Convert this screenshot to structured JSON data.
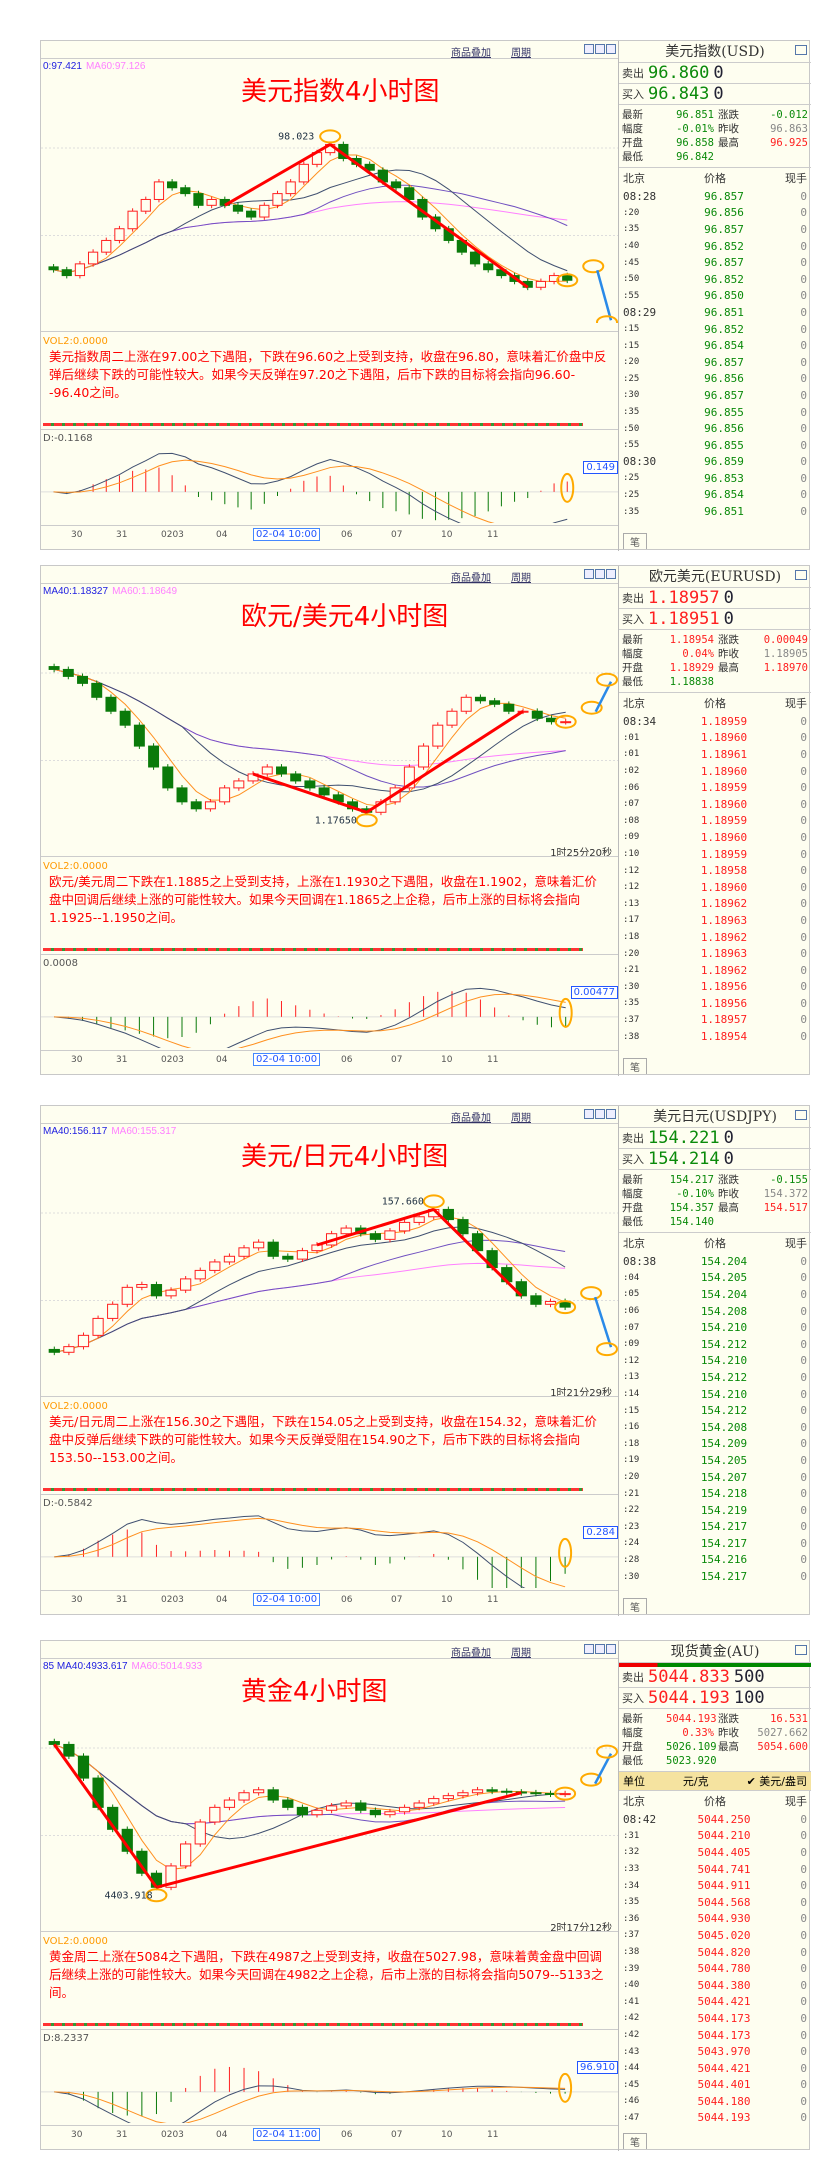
{
  "colors": {
    "up": "#ff2020",
    "down": "#0a7a0a",
    "ma5": "#ff9020",
    "ma10": "#405070",
    "ma20": "#7050c0",
    "ma60": "#ff80ff",
    "annotation": "#ff0000",
    "highlight": "#ffaa00",
    "arrow": "#2a8ae8"
  },
  "panels": [
    {
      "toolbar": {
        "overlay": "商品叠加",
        "period": "周期"
      },
      "ma_labels": [
        {
          "text": "0:97.421",
          "color": "#2020e0"
        },
        {
          "text": "MA60:97.126",
          "color": "#ff80ff"
        }
      ],
      "title": "美元指数4小时图",
      "extreme_label": "98.023",
      "countdown": "",
      "vol_label": "VOL2:0.0000",
      "commentary": "美元指数周二上涨在97.00之下遇阻，下跌在96.60之上受到支持，收盘在96.80，意味着汇价盘中反弹后继续下跌的可能性较大。如果今天反弹在97.20之下遇阻，后市下跌的目标将会指向96.60--96.40之间。",
      "macd_label": "D:-0.1168",
      "macd_badge": "0.149",
      "x_labels": [
        "30",
        "31",
        "0203",
        "04",
        "02-04 10:00",
        "06",
        "07",
        "10",
        "11"
      ],
      "closes": [
        96.95,
        96.9,
        97.0,
        97.1,
        97.2,
        97.3,
        97.45,
        97.55,
        97.7,
        97.65,
        97.6,
        97.5,
        97.55,
        97.5,
        97.45,
        97.4,
        97.5,
        97.6,
        97.7,
        97.85,
        97.95,
        98.02,
        97.9,
        97.85,
        97.8,
        97.7,
        97.65,
        97.55,
        97.4,
        97.3,
        97.2,
        97.1,
        97.0,
        96.95,
        96.9,
        96.85,
        96.8,
        96.85,
        96.9,
        96.86
      ],
      "quote": {
        "name": "美元指数(USD)",
        "price_color": "#0a8a0a",
        "sell_label": "卖出",
        "sell": "96.860",
        "sell_vol": "0",
        "buy_label": "买入",
        "buy": "96.843",
        "buy_vol": "0",
        "stats": [
          {
            "label": "最新",
            "value": "96.851",
            "color": "#0a8a0a"
          },
          {
            "label": "涨跌",
            "value": "-0.012",
            "color": "#0a8a0a"
          },
          {
            "label": "幅度",
            "value": "-0.01%",
            "color": "#0a8a0a"
          },
          {
            "label": "昨收",
            "value": "96.863",
            "color": "#888888"
          },
          {
            "label": "开盘",
            "value": "96.858",
            "color": "#0a8a0a"
          },
          {
            "label": "最高",
            "value": "96.925",
            "color": "#ff2020"
          },
          {
            "label": "最低",
            "value": "96.842",
            "color": "#0a8a0a"
          }
        ],
        "unit": null,
        "headers": [
          "北京",
          "价格",
          "现手"
        ],
        "ticks": [
          [
            "08:28",
            "96.857",
            "0"
          ],
          [
            ":20",
            "96.856",
            "0"
          ],
          [
            ":35",
            "96.857",
            "0"
          ],
          [
            ":40",
            "96.852",
            "0"
          ],
          [
            ":45",
            "96.857",
            "0"
          ],
          [
            ":50",
            "96.852",
            "0"
          ],
          [
            ":55",
            "96.850",
            "0"
          ],
          [
            "08:29",
            "96.851",
            "0"
          ],
          [
            ":15",
            "96.852",
            "0"
          ],
          [
            ":15",
            "96.854",
            "0"
          ],
          [
            ":20",
            "96.857",
            "0"
          ],
          [
            ":25",
            "96.856",
            "0"
          ],
          [
            ":30",
            "96.857",
            "0"
          ],
          [
            ":35",
            "96.855",
            "0"
          ],
          [
            ":50",
            "96.856",
            "0"
          ],
          [
            ":55",
            "96.855",
            "0"
          ],
          [
            "08:30",
            "96.859",
            "0"
          ],
          [
            ":25",
            "96.853",
            "0"
          ],
          [
            ":25",
            "96.854",
            "0"
          ],
          [
            ":35",
            "96.851",
            "0"
          ]
        ],
        "tab": "笔"
      }
    },
    {
      "toolbar": {
        "overlay": "商品叠加",
        "period": "周期"
      },
      "ma_labels": [
        {
          "text": "MA40:1.18327",
          "color": "#2020e0"
        },
        {
          "text": "MA60:1.18649",
          "color": "#ff80ff"
        }
      ],
      "title": "欧元/美元4小时图",
      "extreme_label": "1.17650",
      "countdown": "1时25分20秒",
      "vol_label": "VOL2:0.0000",
      "commentary": "欧元/美元周二下跌在1.1885之上受到支持，上涨在1.1930之下遇阻，收盘在1.1902，意味着汇价盘中回调后继续上涨的可能性较大。如果今天回调在1.1865之上企稳，后市上涨的目标将会指向1.1925--1.1950之间。",
      "macd_label": "0.0008",
      "macd_badge": "0.00477",
      "x_labels": [
        "30",
        "31",
        "0203",
        "04",
        "02-04 10:00",
        "06",
        "07",
        "10",
        "11"
      ],
      "closes": [
        1.197,
        1.196,
        1.195,
        1.193,
        1.191,
        1.189,
        1.186,
        1.183,
        1.18,
        1.178,
        1.177,
        1.178,
        1.18,
        1.181,
        1.182,
        1.183,
        1.182,
        1.181,
        1.18,
        1.179,
        1.178,
        1.177,
        1.1765,
        1.178,
        1.18,
        1.183,
        1.186,
        1.189,
        1.191,
        1.193,
        1.1925,
        1.192,
        1.191,
        1.191,
        1.19,
        1.1895,
        1.1895
      ],
      "quote": {
        "name": "欧元美元(EURUSD)",
        "price_color": "#ff2020",
        "sell_label": "卖出",
        "sell": "1.18957",
        "sell_vol": "0",
        "buy_label": "买入",
        "buy": "1.18951",
        "buy_vol": "0",
        "stats": [
          {
            "label": "最新",
            "value": "1.18954",
            "color": "#ff2020"
          },
          {
            "label": "涨跌",
            "value": "0.00049",
            "color": "#ff2020"
          },
          {
            "label": "幅度",
            "value": "0.04%",
            "color": "#ff2020"
          },
          {
            "label": "昨收",
            "value": "1.18905",
            "color": "#888888"
          },
          {
            "label": "开盘",
            "value": "1.18929",
            "color": "#ff2020"
          },
          {
            "label": "最高",
            "value": "1.18970",
            "color": "#ff2020"
          },
          {
            "label": "最低",
            "value": "1.18838",
            "color": "#0a8a0a"
          }
        ],
        "unit": null,
        "headers": [
          "北京",
          "价格",
          "现手"
        ],
        "ticks": [
          [
            "08:34",
            "1.18959",
            "0"
          ],
          [
            ":01",
            "1.18960",
            "0"
          ],
          [
            ":01",
            "1.18961",
            "0"
          ],
          [
            ":02",
            "1.18960",
            "0"
          ],
          [
            ":06",
            "1.18959",
            "0"
          ],
          [
            ":07",
            "1.18960",
            "0"
          ],
          [
            ":08",
            "1.18959",
            "0"
          ],
          [
            ":09",
            "1.18960",
            "0"
          ],
          [
            ":10",
            "1.18959",
            "0"
          ],
          [
            ":12",
            "1.18958",
            "0"
          ],
          [
            ":12",
            "1.18960",
            "0"
          ],
          [
            ":13",
            "1.18962",
            "0"
          ],
          [
            ":17",
            "1.18963",
            "0"
          ],
          [
            ":18",
            "1.18962",
            "0"
          ],
          [
            ":20",
            "1.18963",
            "0"
          ],
          [
            ":21",
            "1.18962",
            "0"
          ],
          [
            ":30",
            "1.18956",
            "0"
          ],
          [
            ":35",
            "1.18956",
            "0"
          ],
          [
            ":37",
            "1.18957",
            "0"
          ],
          [
            ":38",
            "1.18954",
            "0"
          ]
        ],
        "tab": "笔"
      }
    },
    {
      "toolbar": {
        "overlay": "商品叠加",
        "period": "周期"
      },
      "ma_labels": [
        {
          "text": "MA40:156.117",
          "color": "#2020e0"
        },
        {
          "text": "MA60:155.317",
          "color": "#ff80ff"
        }
      ],
      "title": "美元/日元4小时图",
      "extreme_label": "157.660",
      "countdown": "1时21分29秒",
      "vol_label": "VOL2:0.0000",
      "commentary": "美元/日元周二上涨在156.30之下遇阻，下跌在154.05之上受到支持，收盘在154.32，意味着汇价盘中反弹后继续下跌的可能性较大。如果今天反弹受阻在154.90之下，后市下跌的目标将会指向153.50--153.00之间。",
      "macd_label": "D:-0.5842",
      "macd_badge": "0.284",
      "x_labels": [
        "30",
        "31",
        "0203",
        "04",
        "02-04 10:00",
        "06",
        "07",
        "10",
        "11"
      ],
      "closes": [
        152.6,
        152.8,
        153.2,
        153.8,
        154.3,
        154.9,
        155.0,
        154.6,
        154.8,
        155.2,
        155.5,
        155.8,
        156.0,
        156.3,
        156.5,
        156.0,
        155.9,
        156.2,
        156.4,
        156.8,
        157.0,
        156.8,
        156.6,
        156.9,
        157.2,
        157.4,
        157.66,
        157.3,
        156.8,
        156.2,
        155.6,
        155.1,
        154.6,
        154.3,
        154.4,
        154.2
      ],
      "quote": {
        "name": "美元日元(USDJPY)",
        "price_color": "#0a8a0a",
        "sell_label": "卖出",
        "sell": "154.221",
        "sell_vol": "0",
        "buy_label": "买入",
        "buy": "154.214",
        "buy_vol": "0",
        "stats": [
          {
            "label": "最新",
            "value": "154.217",
            "color": "#0a8a0a"
          },
          {
            "label": "涨跌",
            "value": "-0.155",
            "color": "#0a8a0a"
          },
          {
            "label": "幅度",
            "value": "-0.10%",
            "color": "#0a8a0a"
          },
          {
            "label": "昨收",
            "value": "154.372",
            "color": "#888888"
          },
          {
            "label": "开盘",
            "value": "154.357",
            "color": "#0a8a0a"
          },
          {
            "label": "最高",
            "value": "154.517",
            "color": "#ff2020"
          },
          {
            "label": "最低",
            "value": "154.140",
            "color": "#0a8a0a"
          }
        ],
        "unit": null,
        "headers": [
          "北京",
          "价格",
          "现手"
        ],
        "ticks": [
          [
            "08:38",
            "154.204",
            "0"
          ],
          [
            ":04",
            "154.205",
            "0"
          ],
          [
            ":05",
            "154.204",
            "0"
          ],
          [
            ":06",
            "154.208",
            "0"
          ],
          [
            ":07",
            "154.210",
            "0"
          ],
          [
            ":09",
            "154.212",
            "0"
          ],
          [
            ":12",
            "154.210",
            "0"
          ],
          [
            ":13",
            "154.212",
            "0"
          ],
          [
            ":14",
            "154.210",
            "0"
          ],
          [
            ":15",
            "154.212",
            "0"
          ],
          [
            ":16",
            "154.208",
            "0"
          ],
          [
            ":18",
            "154.209",
            "0"
          ],
          [
            ":19",
            "154.205",
            "0"
          ],
          [
            ":20",
            "154.207",
            "0"
          ],
          [
            ":21",
            "154.218",
            "0"
          ],
          [
            ":22",
            "154.219",
            "0"
          ],
          [
            ":23",
            "154.217",
            "0"
          ],
          [
            ":24",
            "154.217",
            "0"
          ],
          [
            ":28",
            "154.216",
            "0"
          ],
          [
            ":30",
            "154.217",
            "0"
          ]
        ],
        "tab": "笔"
      }
    },
    {
      "toolbar": {
        "overlay": "商品叠加",
        "period": "周期"
      },
      "ma_labels": [
        {
          "text": "85 MA40:4933.617",
          "color": "#2020e0"
        },
        {
          "text": "MA60:5014.933",
          "color": "#ff80ff"
        }
      ],
      "title": "黄金4小时图",
      "extreme_label": "4403.918",
      "countdown": "2时17分12秒",
      "vol_label": "VOL2:0.0000",
      "commentary": "黄金周二上涨在5084之下遇阻，下跌在4987之上受到支持，收盘在5027.98，意味着黄金盘中回调后继续上涨的可能性较大。如果今天回调在4982之上企稳，后市上涨的目标将会指向5079--5133之间。",
      "macd_label": "D:8.2337",
      "macd_badge": "96.910",
      "x_labels": [
        "30",
        "31",
        "0203",
        "04",
        "02-04 11:00",
        "06",
        "07",
        "10",
        "11"
      ],
      "closes": [
        5380,
        5300,
        5150,
        4950,
        4800,
        4650,
        4500,
        4404,
        4550,
        4700,
        4850,
        4950,
        5000,
        5050,
        5070,
        5000,
        4950,
        4900,
        4930,
        4960,
        4980,
        4930,
        4900,
        4920,
        4950,
        4980,
        5010,
        5030,
        5050,
        5070,
        5060,
        5055,
        5050,
        5045,
        5040,
        5044
      ],
      "quote": {
        "name": "现货黄金(AU)",
        "price_color": "#ff2020",
        "sell_label": "卖出",
        "sell": "5044.833",
        "sell_vol": "500",
        "buy_label": "买入",
        "buy": "5044.193",
        "buy_vol": "100",
        "stats": [
          {
            "label": "最新",
            "value": "5044.193",
            "color": "#ff2020"
          },
          {
            "label": "涨跌",
            "value": "16.531",
            "color": "#ff2020"
          },
          {
            "label": "幅度",
            "value": "0.33%",
            "color": "#ff2020"
          },
          {
            "label": "昨收",
            "value": "5027.662",
            "color": "#888888"
          },
          {
            "label": "开盘",
            "value": "5026.109",
            "color": "#0a8a0a"
          },
          {
            "label": "最高",
            "value": "5054.600",
            "color": "#ff2020"
          },
          {
            "label": "最低",
            "value": "5023.920",
            "color": "#0a8a0a"
          }
        ],
        "unit": {
          "label": "单位",
          "unit1": "元/克",
          "unit2": "✔ 美元/盎司"
        },
        "headers": [
          "北京",
          "价格",
          "现手"
        ],
        "ticks": [
          [
            "08:42",
            "5044.250",
            "0"
          ],
          [
            ":31",
            "5044.210",
            "0"
          ],
          [
            ":32",
            "5044.405",
            "0"
          ],
          [
            ":33",
            "5044.741",
            "0"
          ],
          [
            ":34",
            "5044.911",
            "0"
          ],
          [
            ":35",
            "5044.568",
            "0"
          ],
          [
            ":36",
            "5044.930",
            "0"
          ],
          [
            ":37",
            "5045.020",
            "0"
          ],
          [
            ":38",
            "5044.820",
            "0"
          ],
          [
            ":39",
            "5044.780",
            "0"
          ],
          [
            ":40",
            "5044.380",
            "0"
          ],
          [
            ":41",
            "5044.421",
            "0"
          ],
          [
            ":42",
            "5044.173",
            "0"
          ],
          [
            ":42",
            "5044.173",
            "0"
          ],
          [
            ":43",
            "5043.970",
            "0"
          ],
          [
            ":44",
            "5044.421",
            "0"
          ],
          [
            ":45",
            "5044.401",
            "0"
          ],
          [
            ":46",
            "5044.180",
            "0"
          ],
          [
            ":47",
            "5044.193",
            "0"
          ]
        ],
        "tab": "笔"
      }
    }
  ]
}
